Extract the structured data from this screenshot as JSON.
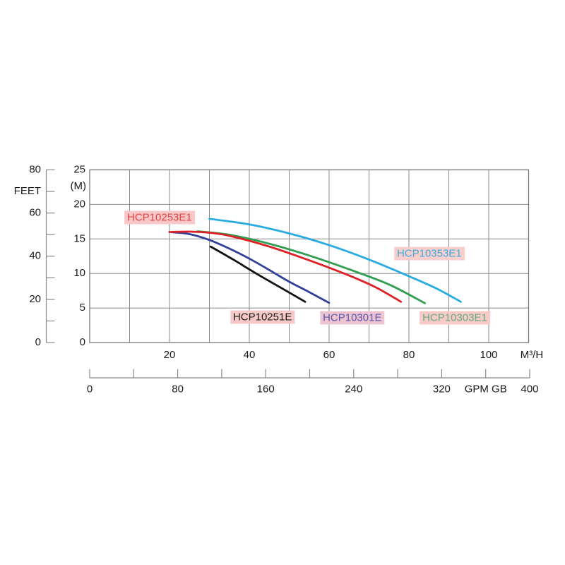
{
  "chart_data": {
    "type": "line",
    "title": "",
    "grid": true,
    "legend": "inline-labels",
    "x_axis": {
      "unit": "M³/H",
      "range": [
        0,
        110
      ],
      "gridline_step": 10,
      "tick_labels": [
        20,
        40,
        60,
        80,
        100
      ]
    },
    "y_axis_m": {
      "unit": "(M)",
      "range": [
        0,
        25
      ],
      "gridline_step": 5,
      "tick_labels": [
        25,
        20,
        15,
        10,
        5,
        0
      ]
    },
    "y_axis_feet": {
      "title": "FEET",
      "range": [
        0,
        80
      ],
      "tick_step": 10,
      "tick_labels": [
        80,
        60,
        40,
        20,
        0
      ],
      "title_at": 70
    },
    "x_axis_gpm": {
      "unit": "GPM GB",
      "unit_at": 360,
      "range": [
        0,
        400
      ],
      "tick_step": 40,
      "tick_labels": [
        0,
        80,
        160,
        240,
        320,
        400
      ]
    },
    "series": [
      {
        "name": "HCP10301E",
        "color": "#31409b",
        "label_color": "#5b55a8",
        "label_bg": "#edc5d2",
        "label_anchor": {
          "x": 65.8,
          "y": 3.6
        },
        "points": [
          [
            20,
            16.0
          ],
          [
            25,
            15.7
          ],
          [
            30,
            14.85
          ],
          [
            35,
            13.6
          ],
          [
            40,
            12.15
          ],
          [
            45,
            10.5
          ],
          [
            50,
            8.8
          ],
          [
            55,
            7.3
          ],
          [
            60,
            5.75
          ]
        ]
      },
      {
        "name": "HCP10303E1",
        "color": "#2f9e50",
        "label_color": "#62ab80",
        "label_bg": "#f8cbc9",
        "label_anchor": {
          "x": 91.5,
          "y": 3.6
        },
        "points": [
          [
            27,
            16.1
          ],
          [
            35,
            15.6
          ],
          [
            45,
            14.3
          ],
          [
            55,
            12.6
          ],
          [
            65,
            10.6
          ],
          [
            75,
            8.4
          ],
          [
            84,
            5.7
          ]
        ]
      },
      {
        "name": "HCP10253E1",
        "color": "#dd2127",
        "label_color": "#e04545",
        "label_bg": "#f8c8c8",
        "label_anchor": {
          "x": 17.5,
          "y": 18.1
        },
        "points": [
          [
            20,
            16.0
          ],
          [
            25,
            16.05
          ],
          [
            30,
            15.9
          ],
          [
            35,
            15.45
          ],
          [
            45,
            13.9
          ],
          [
            55,
            11.9
          ],
          [
            65,
            9.7
          ],
          [
            72,
            7.9
          ],
          [
            78,
            5.9
          ]
        ]
      },
      {
        "name": "HCP10251E",
        "color": "#121212",
        "label_color": "#1a1a1a",
        "label_bg": "#f6c8c8",
        "label_anchor": {
          "x": 43.3,
          "y": 3.65
        },
        "points": [
          [
            30.3,
            13.9
          ],
          [
            36,
            12.0
          ],
          [
            42,
            9.9
          ],
          [
            48,
            7.9
          ],
          [
            54,
            5.9
          ]
        ]
      },
      {
        "name": "HCP10353E1",
        "color": "#29abe2",
        "label_color": "#3cabdc",
        "label_bg": "#f8cfcd",
        "label_anchor": {
          "x": 85.1,
          "y": 12.9
        },
        "points": [
          [
            30,
            17.9
          ],
          [
            40,
            17.1
          ],
          [
            50,
            15.8
          ],
          [
            60,
            14.1
          ],
          [
            70,
            12.0
          ],
          [
            80,
            9.6
          ],
          [
            87,
            7.8
          ],
          [
            93,
            5.9
          ]
        ]
      }
    ],
    "style": {
      "grid_color": "#8a8a8a",
      "border_color": "#6e6e6e",
      "axis_color": "#8a8a8a",
      "text_color": "#1a1a1a",
      "curve_width": 2.8
    }
  }
}
